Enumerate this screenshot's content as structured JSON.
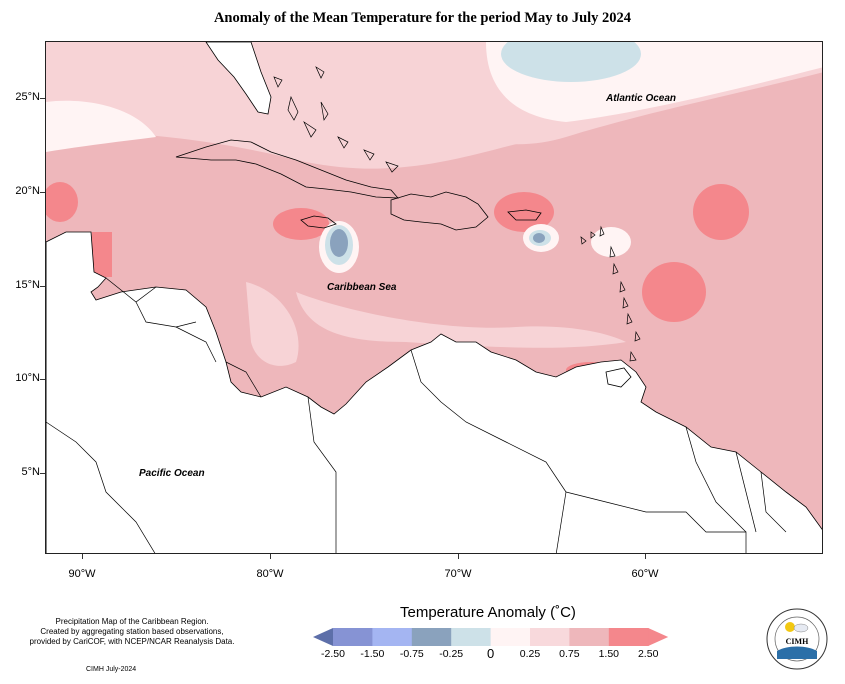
{
  "title": "Anomaly of the Mean Temperature for the period May to July 2024",
  "labels": {
    "atlantic": "Atlantic Ocean",
    "caribbean": "Caribbean Sea",
    "pacific": "Pacific Ocean"
  },
  "lat_ticks": [
    "25°N",
    "20°N",
    "15°N",
    "10°N",
    "5°N"
  ],
  "lon_ticks": [
    "90°W",
    "80°W",
    "70°W",
    "60°W"
  ],
  "legend": {
    "title": "Temperature Anomaly (˚C)",
    "ticks": [
      "-2.50",
      "-1.50",
      "-0.75",
      "-0.25",
      "0",
      "0.25",
      "0.75",
      "1.50",
      "2.50"
    ],
    "colors": [
      "#5d6fa9",
      "#8693d4",
      "#a4b5f2",
      "#8aa2bd",
      "#cde1e8",
      "#fff4f4",
      "#f8d9dc",
      "#eeb7bb",
      "#f4878c",
      "#f4878c"
    ]
  },
  "notes": {
    "line1": "Precipitation Map of the Caribbean Region.",
    "line2": "Created by aggregating station based observations,",
    "line3": "provided by CariCOF, with NCEP/NCAR Reanalysis Data.",
    "date": "CIMH July-2024"
  },
  "logo": {
    "text": "CIMH",
    "ring_text": "Caribbean Institute for Meteorology and Hydrology"
  }
}
